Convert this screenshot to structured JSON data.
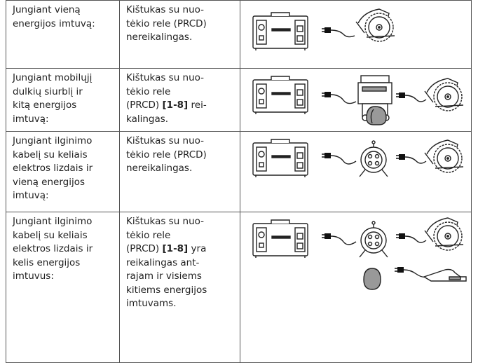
{
  "table": {
    "rows": [
      {
        "condition": [
          "Jungiant vieną",
          "energijos imtuvą:"
        ],
        "requirement": [
          "Kištukas su nuo-",
          "tėkio rele (PRCD)",
          "nereikalingas."
        ]
      },
      {
        "condition": [
          "Jungiant mobilųjį",
          "dulkių siurblį ir",
          "kitą energijos",
          "imtuvą:"
        ],
        "requirement": [
          "Kištukas su nuo-",
          "tėkio rele",
          [
            "(PRCD) ",
            {
              "bold": "[1-8]"
            },
            " rei-"
          ],
          "kalingas."
        ]
      },
      {
        "condition": [
          "Jungiant ilginimo",
          "kabelį su keliais",
          "elektros lizdais ir",
          "vieną energijos",
          "imtuvą:"
        ],
        "requirement": [
          "Kištukas su nuo-",
          "tėkio rele (PRCD)",
          "nereikalingas."
        ]
      },
      {
        "condition": [
          "Jungiant ilginimo",
          "kabelį su keliais",
          "elektros lizdais ir",
          "kelis energijos",
          "imtuvus:"
        ],
        "requirement": [
          "Kištukas su nuo-",
          "tėkio rele",
          [
            "(PRCD) ",
            {
              "bold": "[1-8]"
            },
            " yra"
          ],
          "reikalingas ant-",
          "rajam ir visiems",
          "kitiems energijos",
          "imtuvams."
        ]
      }
    ]
  }
}
